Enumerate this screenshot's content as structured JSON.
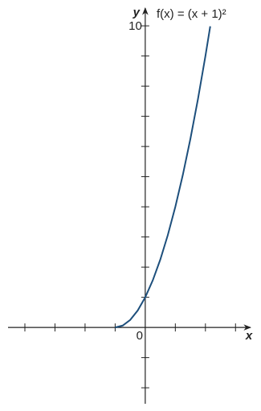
{
  "chart_data": {
    "type": "line",
    "function_label": "f(x) = (x + 1)²",
    "x_label": "x",
    "y_label": "y",
    "origin": 0,
    "x": [
      -1,
      -0.75,
      -0.5,
      -0.25,
      0,
      0.25,
      0.5,
      0.75,
      1,
      1.25,
      1.5,
      1.75,
      2,
      2.16
    ],
    "series": [
      {
        "name": "f(x) = (x + 1)²",
        "color": "#1d4f7c",
        "values": [
          0,
          0.0625,
          0.25,
          0.5625,
          1,
          1.5625,
          2.25,
          3.0625,
          4,
          5.0625,
          6.25,
          7.5625,
          9,
          9.9856
        ]
      }
    ],
    "xlim": [
      -4.56,
      3.5
    ],
    "ylim": [
      -2.53,
      10.59
    ],
    "xticks": [
      -4,
      -3,
      -2,
      -1,
      1,
      2,
      3
    ],
    "yticks": [
      -2,
      -1,
      1,
      2,
      3,
      4,
      5,
      6,
      7,
      8,
      9,
      10
    ]
  }
}
